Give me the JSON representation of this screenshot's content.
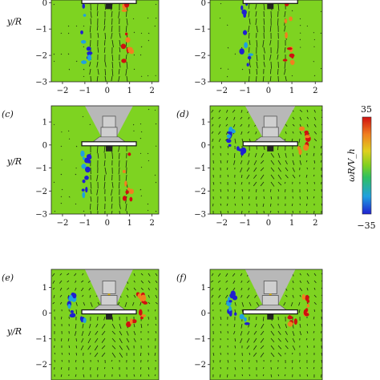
{
  "figure": {
    "y_axis_label": "y/R",
    "colorbar": {
      "label": "ωR/V_h",
      "max_label": "35",
      "min_label": "−35",
      "colors": [
        "#2020d0",
        "#20a0e0",
        "#30c060",
        "#80d020",
        "#e0d020",
        "#f08020",
        "#d01010"
      ]
    },
    "panels": [
      {
        "id": "a",
        "label": "",
        "show_y_label": true,
        "show_y_ticks": true,
        "show_x_ticks": true,
        "hood": false,
        "wake": "straight"
      },
      {
        "id": "b",
        "label": "",
        "show_y_label": false,
        "show_y_ticks": true,
        "show_x_ticks": true,
        "hood": false,
        "wake": "straight"
      },
      {
        "id": "c",
        "label": "(c)",
        "show_y_label": true,
        "show_y_ticks": true,
        "show_x_ticks": true,
        "hood": true,
        "wake": "straight"
      },
      {
        "id": "d",
        "label": "(d)",
        "show_y_label": false,
        "show_y_ticks": true,
        "show_x_ticks": true,
        "hood": true,
        "wake": "spread"
      },
      {
        "id": "e",
        "label": "(e)",
        "show_y_label": true,
        "show_y_ticks": true,
        "show_x_ticks": false,
        "hood": true,
        "wake": "spread"
      },
      {
        "id": "f",
        "label": "(f)",
        "show_y_label": false,
        "show_y_ticks": true,
        "show_x_ticks": false,
        "hood": true,
        "wake": "spread"
      }
    ],
    "x_ticks": [
      "−2",
      "−1",
      "0",
      "1",
      "2"
    ],
    "y_ticks_top_row": [
      "0",
      "−1",
      "−2",
      "−3"
    ],
    "y_ticks_other": [
      "1",
      "0",
      "−1",
      "−2",
      "−3"
    ]
  }
}
